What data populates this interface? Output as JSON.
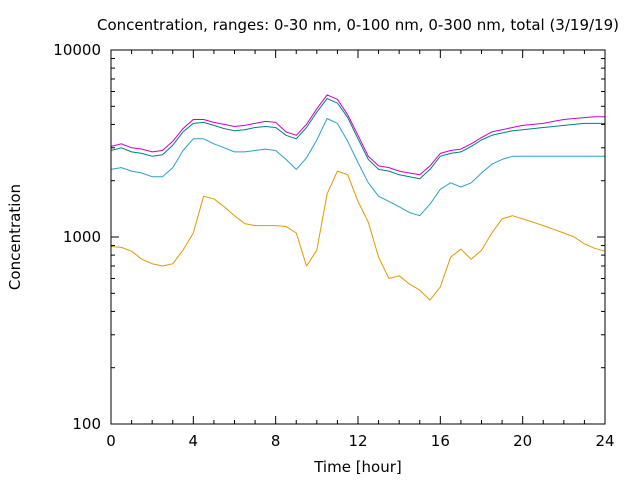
{
  "chart_data": {
    "type": "line",
    "title": "Concentration, ranges: 0-30 nm, 0-100 nm, 0-300 nm, total (3/19/19)",
    "xlabel": "Time [hour]",
    "ylabel": "Concentration",
    "xlim": [
      0,
      24
    ],
    "ylim": [
      100,
      10000
    ],
    "yscale": "log",
    "grid": false,
    "legend": "none",
    "x_ticks": [
      "0",
      "4",
      "8",
      "12",
      "16",
      "20",
      "24"
    ],
    "y_ticks": [
      "100",
      "1000",
      "10000"
    ],
    "x": [
      0,
      0.5,
      1,
      1.5,
      2,
      2.5,
      3,
      3.5,
      4,
      4.5,
      5,
      5.5,
      6,
      6.5,
      7,
      7.5,
      8,
      8.5,
      9,
      9.5,
      10,
      10.5,
      11,
      11.5,
      12,
      12.5,
      13,
      13.5,
      14,
      14.5,
      15,
      15.5,
      16,
      16.5,
      17,
      17.5,
      18,
      18.5,
      19,
      19.5,
      20,
      20.5,
      21,
      21.5,
      22,
      22.5,
      23,
      23.5,
      24
    ],
    "series": [
      {
        "color": "#cc00cc",
        "values": [
          3050,
          3150,
          3000,
          2950,
          2850,
          2900,
          3250,
          3800,
          4250,
          4250,
          4100,
          4000,
          3900,
          3950,
          4050,
          4150,
          4100,
          3650,
          3500,
          4000,
          4850,
          5750,
          5450,
          4500,
          3500,
          2700,
          2400,
          2350,
          2250,
          2200,
          2150,
          2400,
          2800,
          2900,
          2950,
          3150,
          3400,
          3650,
          3750,
          3850,
          3950,
          4000,
          4050,
          4150,
          4250,
          4300,
          4350,
          4400,
          4400
        ]
      },
      {
        "color": "#008080",
        "values": [
          2900,
          3000,
          2850,
          2800,
          2700,
          2750,
          3100,
          3650,
          4050,
          4100,
          3950,
          3800,
          3700,
          3750,
          3850,
          3900,
          3850,
          3500,
          3350,
          3850,
          4650,
          5500,
          5200,
          4350,
          3350,
          2600,
          2300,
          2250,
          2150,
          2100,
          2050,
          2300,
          2700,
          2800,
          2850,
          3050,
          3300,
          3500,
          3600,
          3700,
          3750,
          3800,
          3850,
          3900,
          3950,
          4000,
          4050,
          4050,
          4050
        ]
      },
      {
        "color": "#2b9fcc",
        "values": [
          2300,
          2350,
          2250,
          2200,
          2100,
          2100,
          2350,
          2900,
          3350,
          3350,
          3150,
          3000,
          2850,
          2850,
          2900,
          2950,
          2900,
          2600,
          2300,
          2650,
          3300,
          4300,
          4050,
          3250,
          2500,
          1950,
          1650,
          1550,
          1450,
          1350,
          1300,
          1500,
          1800,
          1950,
          1850,
          1950,
          2200,
          2450,
          2600,
          2700,
          2700,
          2700,
          2700,
          2700,
          2700,
          2700,
          2700,
          2700,
          2700
        ]
      },
      {
        "color": "#e09a00",
        "values": [
          890,
          880,
          840,
          760,
          720,
          700,
          720,
          850,
          1050,
          1650,
          1600,
          1450,
          1300,
          1180,
          1150,
          1150,
          1150,
          1140,
          1050,
          700,
          850,
          1700,
          2250,
          2150,
          1550,
          1200,
          780,
          600,
          620,
          560,
          520,
          460,
          540,
          780,
          860,
          760,
          850,
          1050,
          1250,
          1300,
          1250,
          1200,
          1150,
          1100,
          1050,
          1000,
          920,
          870,
          840
        ]
      }
    ]
  }
}
